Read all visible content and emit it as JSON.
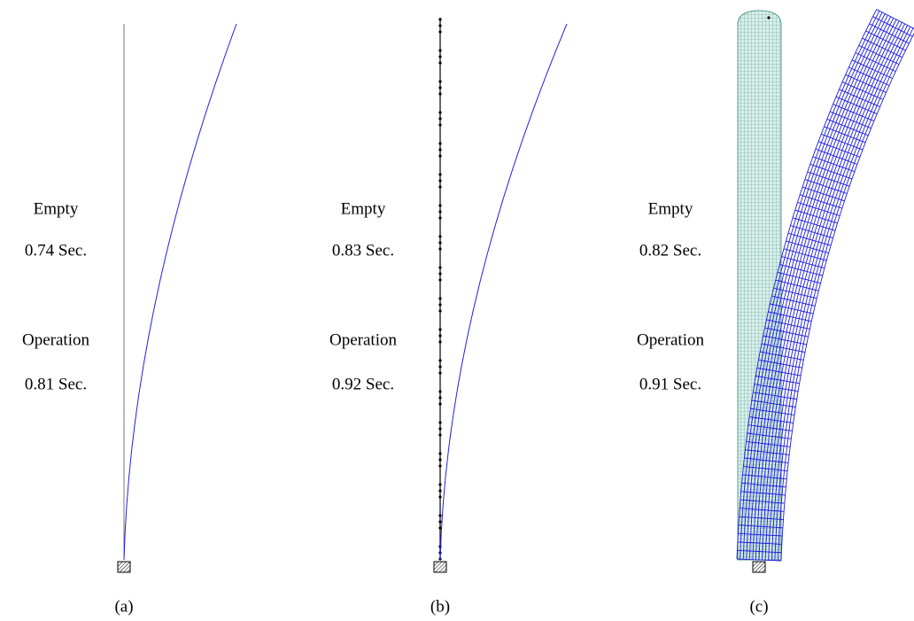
{
  "panels": [
    {
      "empty_label": "Empty",
      "empty_period": "0.74 Sec.",
      "operation_label": "Operation",
      "operation_period": "0.81 Sec.",
      "caption": "(a)"
    },
    {
      "empty_label": "Empty",
      "empty_period": "0.83 Sec.",
      "operation_label": "Operation",
      "operation_period": "0.92 Sec.",
      "caption": "(b)"
    },
    {
      "empty_label": "Empty",
      "empty_period": "0.82 Sec.",
      "operation_label": "Operation",
      "operation_period": "0.91 Sec.",
      "caption": "(c)"
    }
  ]
}
